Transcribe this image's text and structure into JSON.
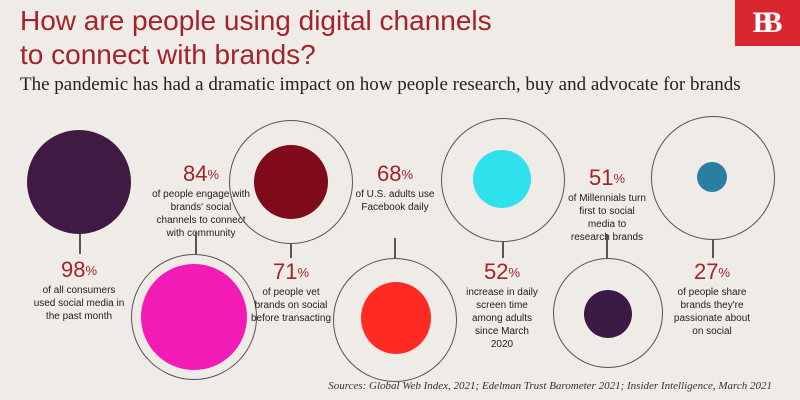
{
  "header": {
    "title_line1": "How are people using digital channels",
    "title_line2": "to connect with brands?",
    "subtitle": "The pandemic has had a dramatic impact on how people research, buy and advocate for brands",
    "logo_text": "BB"
  },
  "colors": {
    "title_red": "#a3232c",
    "logo_red": "#d9262f",
    "dark_purple": "#401a42",
    "magenta": "#f21bb5",
    "maroon": "#7e0a1a",
    "red": "#ff2a24",
    "cyan": "#2fe1ec",
    "deep_purple": "#3b1a45",
    "teal": "#2a7fa1"
  },
  "stats": [
    {
      "value": "98",
      "pct": "%",
      "desc": [
        "of all consumers",
        "used social media in",
        "the past month"
      ]
    },
    {
      "value": "84",
      "pct": "%",
      "desc": [
        "of people engage with",
        "brands' social",
        "channels to connect",
        "with community"
      ]
    },
    {
      "value": "71",
      "pct": "%",
      "desc": [
        "of people vet",
        "brands on social",
        "before transacting"
      ]
    },
    {
      "value": "68",
      "pct": "%",
      "desc": [
        "of U.S. adults use",
        "Facebook daily"
      ]
    },
    {
      "value": "52",
      "pct": "%",
      "desc": [
        "increase in daily",
        "screen time",
        "among adults",
        "since March",
        "2020"
      ]
    },
    {
      "value": "51",
      "pct": "%",
      "desc": [
        "of Millennials turn",
        "first to social",
        "media to",
        "research brands"
      ]
    },
    {
      "value": "27",
      "pct": "%",
      "desc": [
        "of people share",
        "brands they're",
        "passionate about",
        "on social"
      ]
    }
  ],
  "sources": "Sources:  Global Web Index, 2021; Edelman Trust Barometer 2021; Insider Intelligence, March 2021"
}
